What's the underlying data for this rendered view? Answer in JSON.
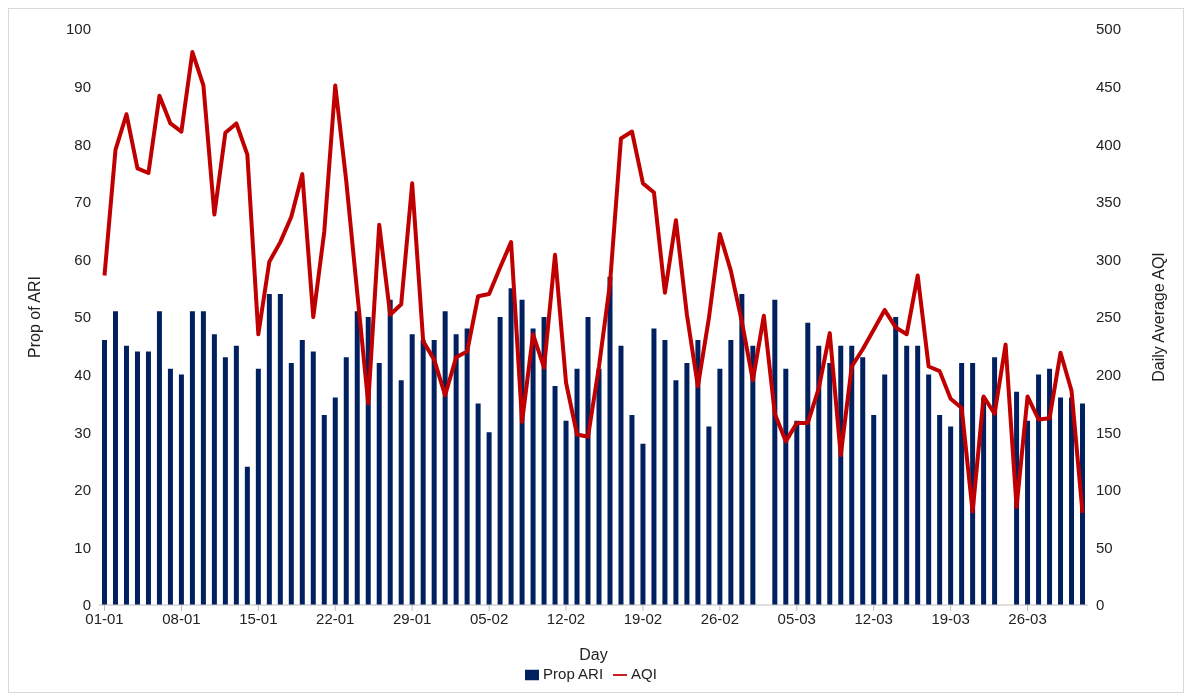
{
  "chart_data": {
    "type": "bar",
    "xlabel": "Day",
    "ylabel": "Prop of ARI",
    "y2label": "Daily Average AQI",
    "categories": [
      "01-01",
      null,
      null,
      null,
      null,
      null,
      null,
      "08-01",
      null,
      null,
      null,
      null,
      null,
      null,
      "15-01",
      null,
      null,
      null,
      null,
      null,
      null,
      "22-01",
      null,
      null,
      null,
      null,
      null,
      null,
      "29-01",
      null,
      null,
      null,
      null,
      null,
      null,
      "05-02",
      null,
      null,
      null,
      null,
      null,
      null,
      "12-02",
      null,
      null,
      null,
      null,
      null,
      null,
      "19-02",
      null,
      null,
      null,
      null,
      null,
      null,
      "26-02",
      null,
      null,
      null,
      null,
      null,
      null,
      "05-03",
      null,
      null,
      null,
      null,
      null,
      null,
      "12-03",
      null,
      null,
      null,
      null,
      null,
      null,
      "19-03",
      null,
      null,
      null,
      null,
      null,
      null,
      "26-03",
      null,
      null,
      null,
      null,
      null
    ],
    "series": [
      {
        "name": "Prop ARI",
        "color": "#002060",
        "values": [
          46,
          51,
          45,
          44,
          44,
          51,
          41,
          40,
          51,
          51,
          47,
          43,
          45,
          24,
          41,
          54,
          54,
          42,
          46,
          44,
          33,
          36,
          43,
          51,
          50,
          42,
          53,
          39,
          47,
          46,
          46,
          51,
          47,
          48,
          35,
          30,
          50,
          55,
          53,
          48,
          50,
          38,
          32,
          41,
          50,
          41,
          57,
          45,
          33,
          28,
          48,
          46,
          39,
          42,
          46,
          31,
          41,
          46,
          54,
          45,
          null,
          53,
          41,
          32,
          49,
          45,
          42,
          45,
          45,
          43,
          33,
          40,
          50,
          45,
          45,
          40,
          33,
          31,
          42,
          42,
          36,
          43,
          null,
          37,
          32,
          40,
          41,
          36,
          36,
          35
        ]
      },
      {
        "name": "AQI",
        "type": "line",
        "axis": "y2",
        "color": "#c00000",
        "values": [
          286,
          395,
          426,
          379,
          375,
          442,
          418,
          411,
          480,
          451,
          339,
          410,
          418,
          391,
          235,
          298,
          315,
          337,
          374,
          250,
          324,
          451,
          368,
          271,
          175,
          330,
          252,
          261,
          366,
          229,
          213,
          182,
          215,
          220,
          268,
          270,
          293,
          315,
          159,
          235,
          206,
          304,
          193,
          148,
          146,
          207,
          279,
          405,
          411,
          366,
          358,
          271,
          334,
          252,
          190,
          249,
          322,
          290,
          246,
          195,
          251,
          166,
          142,
          158,
          158,
          188,
          236,
          130,
          207,
          222,
          239,
          256,
          241,
          235,
          286,
          207,
          203,
          179,
          171,
          81,
          181,
          166,
          226,
          85,
          181,
          161,
          162,
          219,
          186,
          80
        ]
      }
    ],
    "ylim": [
      0,
      100
    ],
    "yticks": [
      0,
      10,
      20,
      30,
      40,
      50,
      60,
      70,
      80,
      90,
      100
    ],
    "y2lim": [
      0,
      500
    ],
    "y2ticks": [
      0,
      50,
      100,
      150,
      200,
      250,
      300,
      350,
      400,
      450,
      500
    ],
    "grid": false,
    "legend": "bottom",
    "marker": "none"
  }
}
